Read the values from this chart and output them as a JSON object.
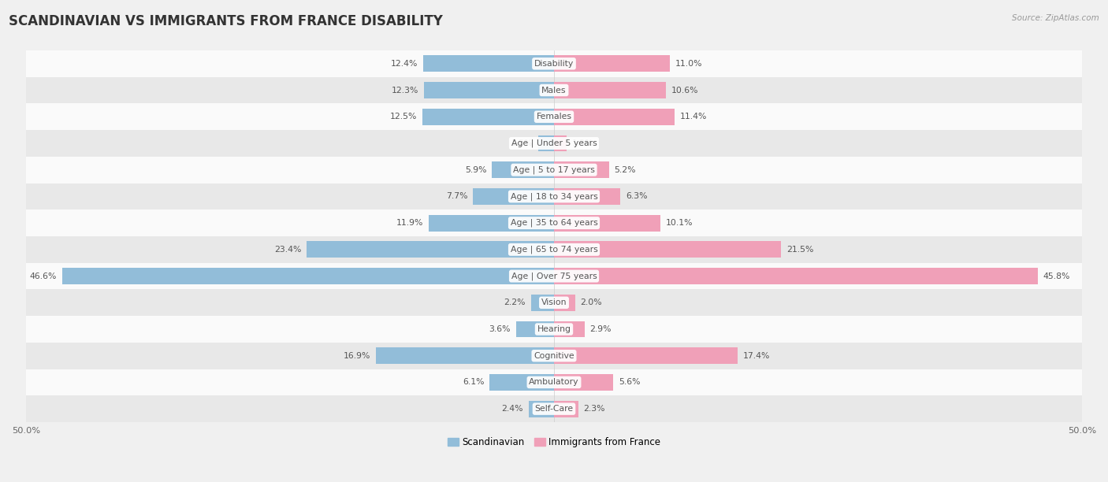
{
  "title": "SCANDINAVIAN VS IMMIGRANTS FROM FRANCE DISABILITY",
  "source": "Source: ZipAtlas.com",
  "categories": [
    "Disability",
    "Males",
    "Females",
    "Age | Under 5 years",
    "Age | 5 to 17 years",
    "Age | 18 to 34 years",
    "Age | 35 to 64 years",
    "Age | 65 to 74 years",
    "Age | Over 75 years",
    "Vision",
    "Hearing",
    "Cognitive",
    "Ambulatory",
    "Self-Care"
  ],
  "scandinavian": [
    12.4,
    12.3,
    12.5,
    1.5,
    5.9,
    7.7,
    11.9,
    23.4,
    46.6,
    2.2,
    3.6,
    16.9,
    6.1,
    2.4
  ],
  "immigrants": [
    11.0,
    10.6,
    11.4,
    1.2,
    5.2,
    6.3,
    10.1,
    21.5,
    45.8,
    2.0,
    2.9,
    17.4,
    5.6,
    2.3
  ],
  "scand_color": "#92bdd9",
  "immig_color": "#f0a0b8",
  "scand_color_dark": "#6aa0c8",
  "immig_color_dark": "#e8708c",
  "axis_max": 50.0,
  "bg_color": "#f0f0f0",
  "row_bg_light": "#fafafa",
  "row_bg_dark": "#e8e8e8",
  "bar_height": 0.62,
  "title_fontsize": 12,
  "label_fontsize": 8.2,
  "value_fontsize": 7.8,
  "legend_fontsize": 8.5,
  "cat_fontsize": 7.8
}
